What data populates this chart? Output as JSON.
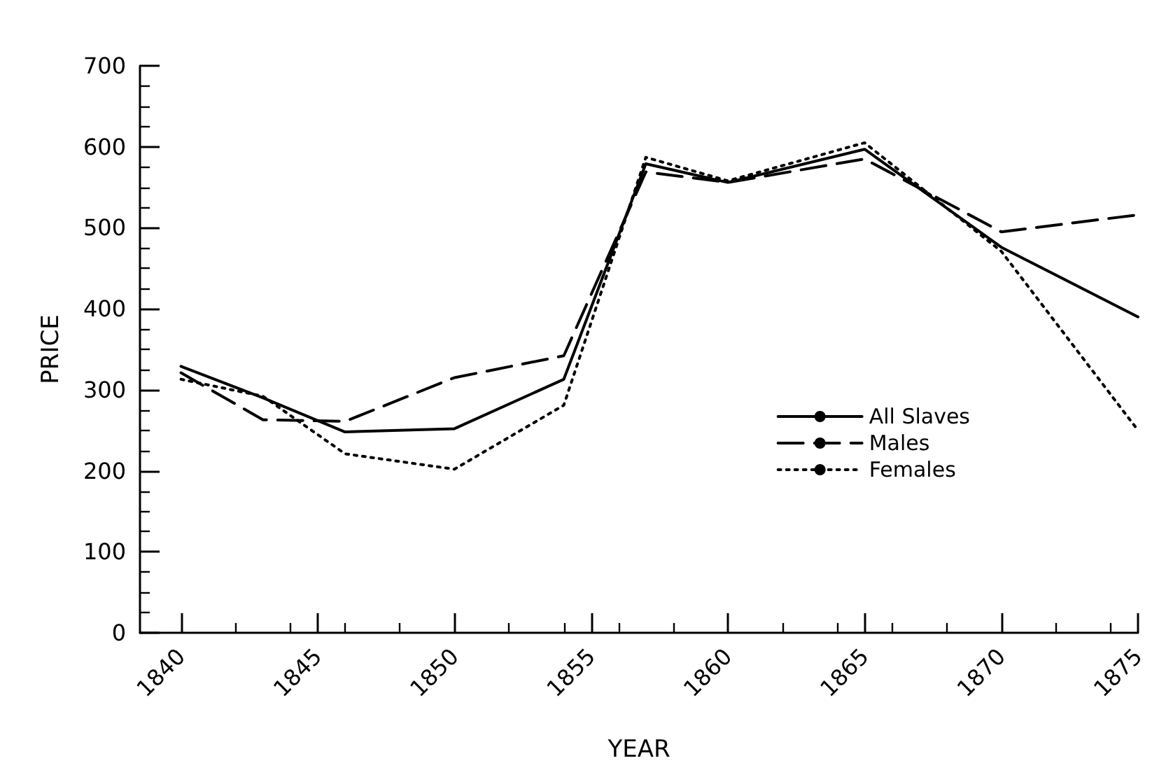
{
  "chart_data": {
    "type": "line",
    "xlabel": "YEAR",
    "ylabel": "PRICE",
    "x": [
      1840,
      1843,
      1846,
      1850,
      1854,
      1857,
      1860,
      1865,
      1870,
      1875
    ],
    "series": [
      {
        "name": "All Slaves",
        "color": "#000000",
        "line_style": "solid",
        "values": [
          329,
          290,
          248,
          252,
          313,
          579,
          556,
          597,
          476,
          390
        ]
      },
      {
        "name": "Males",
        "color": "#000000",
        "line_style": "dashed",
        "values": [
          321,
          263,
          261,
          315,
          342,
          569,
          556,
          585,
          495,
          516
        ]
      },
      {
        "name": "Females",
        "color": "#000000",
        "line_style": "dotted",
        "values": [
          313,
          292,
          221,
          202,
          281,
          587,
          558,
          605,
          471,
          250
        ]
      }
    ],
    "xlim": [
      1838.5,
      1875
    ],
    "xticks": [
      1840,
      1845,
      1850,
      1855,
      1860,
      1865,
      1870,
      1875
    ],
    "ylim": [
      0,
      700
    ],
    "yticks": [
      0,
      100,
      200,
      300,
      400,
      500,
      600,
      700
    ],
    "legend": "right",
    "marker": "none",
    "grid": false
  }
}
